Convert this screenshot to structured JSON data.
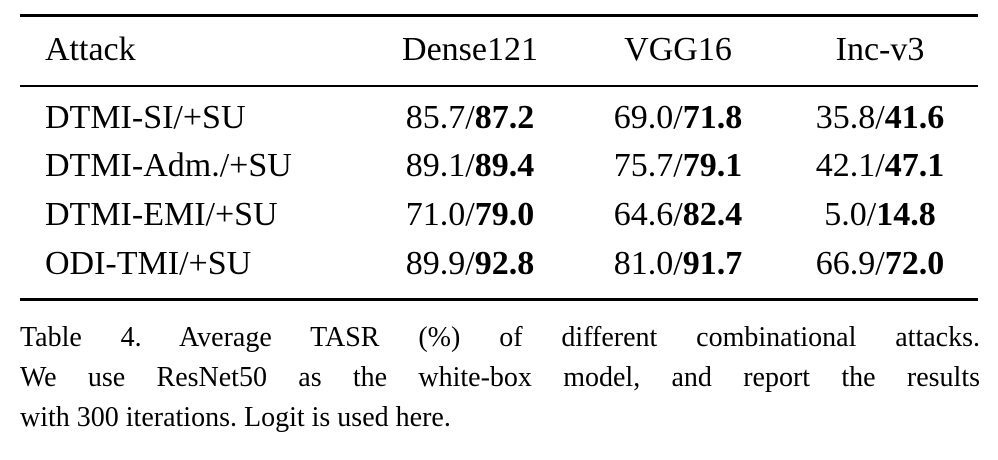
{
  "table": {
    "header": [
      "Attack",
      "Dense121",
      "VGG16",
      "Inc-v3"
    ],
    "rows": [
      {
        "attack": "DTMI-SI/+SU",
        "cells": [
          {
            "plain": "85.7/",
            "bold": "87.2"
          },
          {
            "plain": "69.0/",
            "bold": "71.8"
          },
          {
            "plain": "35.8/",
            "bold": "41.6"
          }
        ]
      },
      {
        "attack": "DTMI-Adm./+SU",
        "cells": [
          {
            "plain": "89.1/",
            "bold": "89.4"
          },
          {
            "plain": "75.7/",
            "bold": "79.1"
          },
          {
            "plain": "42.1/",
            "bold": "47.1"
          }
        ]
      },
      {
        "attack": "DTMI-EMI/+SU",
        "cells": [
          {
            "plain": "71.0/",
            "bold": "79.0"
          },
          {
            "plain": "64.6/",
            "bold": "82.4"
          },
          {
            "plain": "5.0/",
            "bold": "14.8"
          }
        ]
      },
      {
        "attack": "ODI-TMI/+SU",
        "cells": [
          {
            "plain": "89.9/",
            "bold": "92.8"
          },
          {
            "plain": "81.0/",
            "bold": "91.7"
          },
          {
            "plain": "66.9/",
            "bold": "72.0"
          }
        ]
      }
    ]
  },
  "caption": {
    "lines": [
      "Table 4.  Average TASR (%) of different combinational attacks.",
      "We use ResNet50 as the white-box model, and report the results",
      "with 300 iterations. Logit is used here."
    ]
  }
}
